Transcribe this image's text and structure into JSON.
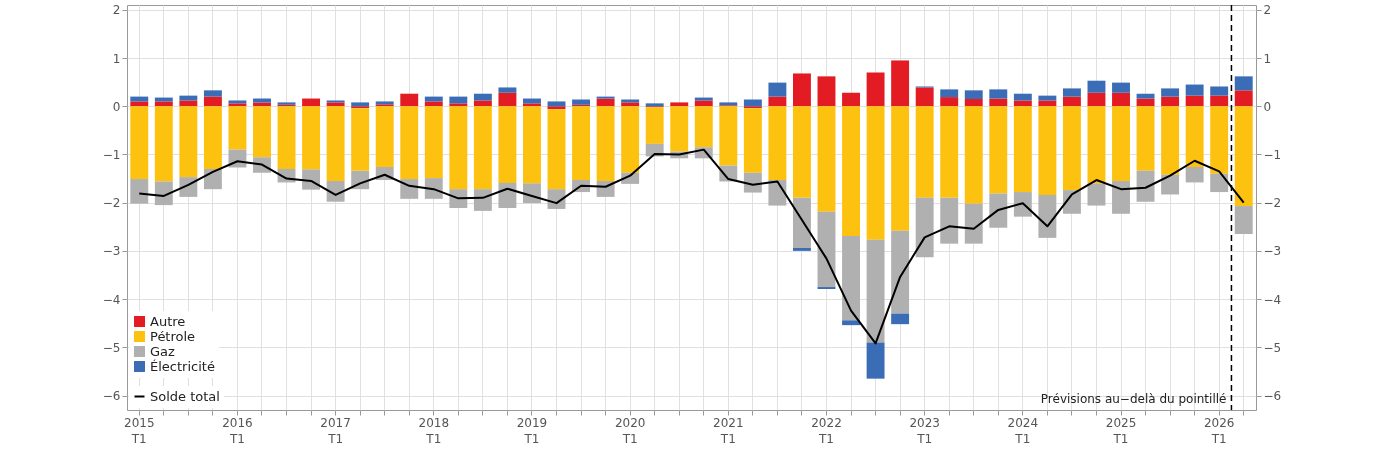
{
  "chart_data": {
    "type": "bar",
    "stacked": true,
    "categories": [
      "2015 T1",
      null,
      null,
      null,
      "2016 T1",
      null,
      null,
      null,
      "2017 T1",
      null,
      null,
      null,
      "2018 T1",
      null,
      null,
      null,
      "2019 T1",
      null,
      null,
      null,
      "2020 T1",
      null,
      null,
      null,
      "2021 T1",
      null,
      null,
      null,
      "2022 T1",
      null,
      null,
      null,
      "2023 T1",
      null,
      null,
      null,
      "2024 T1",
      null,
      null,
      null,
      "2025 T1",
      null,
      null,
      null,
      "2026 T1",
      null
    ],
    "series": [
      {
        "name": "Autre",
        "color": "#e31b23",
        "values": [
          0.1,
          0.1,
          0.12,
          0.2,
          0.06,
          0.08,
          0.03,
          0.16,
          0.08,
          -0.04,
          0.04,
          0.26,
          0.1,
          0.06,
          0.12,
          0.28,
          0.06,
          -0.06,
          0.03,
          0.16,
          0.08,
          -0.02,
          0.08,
          0.12,
          0.02,
          -0.04,
          0.2,
          0.68,
          0.62,
          0.28,
          0.7,
          0.95,
          0.39,
          0.19,
          0.15,
          0.16,
          0.12,
          0.12,
          0.2,
          0.28,
          0.28,
          0.16,
          0.2,
          0.22,
          0.22,
          0.33
        ]
      },
      {
        "name": "Pétrole",
        "color": "#fdc20f",
        "values": [
          -1.51,
          -1.56,
          -1.47,
          -1.3,
          -0.9,
          -1.06,
          -1.3,
          -1.31,
          -1.55,
          -1.3,
          -1.26,
          -1.51,
          -1.49,
          -1.72,
          -1.72,
          -1.59,
          -1.6,
          -1.66,
          -1.53,
          -1.55,
          -1.38,
          -0.76,
          -0.94,
          -0.85,
          -1.23,
          -1.34,
          -1.53,
          -1.9,
          -2.19,
          -2.69,
          -2.77,
          -2.58,
          -1.9,
          -1.9,
          -2.02,
          -1.81,
          -1.78,
          -1.84,
          -1.74,
          -1.6,
          -1.55,
          -1.34,
          -1.42,
          -1.26,
          -1.4,
          -2.07
        ]
      },
      {
        "name": "Gaz",
        "color": "#b0b0b0",
        "values": [
          -0.51,
          -0.49,
          -0.41,
          -0.42,
          -0.37,
          -0.32,
          -0.28,
          -0.42,
          -0.43,
          -0.38,
          -0.27,
          -0.41,
          -0.43,
          -0.39,
          -0.45,
          -0.52,
          -0.41,
          -0.41,
          -0.25,
          -0.33,
          -0.23,
          -0.26,
          -0.14,
          -0.23,
          -0.33,
          -0.41,
          -0.53,
          -1.04,
          -1.56,
          -1.75,
          -2.13,
          -1.72,
          -1.23,
          -0.95,
          -0.83,
          -0.71,
          -0.51,
          -0.89,
          -0.49,
          -0.46,
          -0.68,
          -0.64,
          -0.41,
          -0.32,
          -0.38,
          -0.58
        ]
      },
      {
        "name": "Électricité",
        "color": "#3a6db5",
        "values": [
          0.1,
          0.08,
          0.1,
          0.13,
          0.06,
          0.08,
          0.05,
          null,
          0.04,
          0.08,
          0.06,
          null,
          0.1,
          0.14,
          0.14,
          0.11,
          0.1,
          0.1,
          0.11,
          0.04,
          0.06,
          0.06,
          null,
          0.06,
          0.06,
          0.14,
          0.29,
          -0.06,
          -0.04,
          -0.1,
          -0.75,
          -0.22,
          0.02,
          0.16,
          0.18,
          0.19,
          0.14,
          0.1,
          0.17,
          0.25,
          0.21,
          0.1,
          0.17,
          0.23,
          0.19,
          0.29
        ]
      },
      {
        "name": "Solde total",
        "type": "line",
        "color": "#000000",
        "values": [
          -1.81,
          -1.86,
          -1.63,
          -1.36,
          -1.14,
          -1.21,
          -1.5,
          -1.55,
          -1.84,
          -1.6,
          -1.42,
          -1.65,
          -1.72,
          -1.91,
          -1.9,
          -1.71,
          -1.86,
          -2.01,
          -1.65,
          -1.67,
          -1.44,
          -0.99,
          -1.0,
          -0.9,
          -1.51,
          -1.63,
          -1.56,
          -2.36,
          -3.16,
          -4.24,
          -4.92,
          -3.54,
          -2.72,
          -2.49,
          -2.54,
          -2.15,
          -2.01,
          -2.49,
          -1.83,
          -1.53,
          -1.72,
          -1.69,
          -1.44,
          -1.13,
          -1.35,
          -2.0
        ]
      }
    ],
    "ylim": [
      -6.3,
      2.1
    ],
    "yticks": [
      -6,
      -5,
      -4,
      -3,
      -2,
      -1,
      0,
      1,
      2
    ],
    "y2lim": [
      -6.3,
      2.1
    ],
    "y2ticks": [
      -6,
      -5,
      -4,
      -3,
      -2,
      -1,
      0,
      1,
      2
    ],
    "grid": true,
    "legend": "bottom left",
    "marker": "none",
    "line_style": "solid",
    "ref_lines": [
      {
        "axis": "x",
        "value": "2026 T1",
        "label": "Prévisions au−delà du pointillé",
        "line_style": "dashed",
        "color": "#000000"
      }
    ]
  }
}
